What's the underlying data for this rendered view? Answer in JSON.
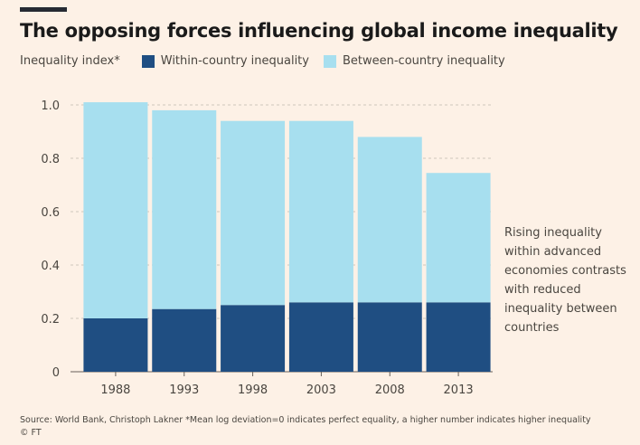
{
  "title": "The opposing forces influencing global income inequality",
  "legend": {
    "ylabel": "Inequality index*",
    "within_label": "Within-country inequality",
    "between_label": "Between-country inequality"
  },
  "annotation": "Rising inequality within advanced economies contrasts with reduced inequality between countries",
  "source": "Source: World Bank, Christoph Lakner *Mean log deviation=0 indicates perfect equality, a higher number indicates higher inequality",
  "credit": "© FT",
  "colors": {
    "within": "#1F4E82",
    "between": "#A7DFEF",
    "background": "#FDF1E6",
    "grid": "#CFC6BC"
  },
  "chart_data": {
    "type": "bar",
    "stacked": true,
    "categories": [
      "1988",
      "1993",
      "1998",
      "2003",
      "2008",
      "2013"
    ],
    "series": [
      {
        "name": "Within-country inequality",
        "values": [
          0.2,
          0.235,
          0.25,
          0.26,
          0.26,
          0.26
        ]
      },
      {
        "name": "Between-country inequality",
        "values": [
          0.81,
          0.745,
          0.69,
          0.68,
          0.62,
          0.485
        ]
      }
    ],
    "totals": [
      1.01,
      0.98,
      0.94,
      0.94,
      0.88,
      0.745
    ],
    "ylabel": "Inequality index*",
    "ylim": [
      0,
      1.0
    ],
    "yticks": [
      0,
      0.2,
      0.4,
      0.6,
      0.8,
      1.0
    ],
    "ytick_labels": [
      "0",
      "0.2",
      "0.4",
      "0.6",
      "0.8",
      "1.0"
    ],
    "grid": true
  }
}
